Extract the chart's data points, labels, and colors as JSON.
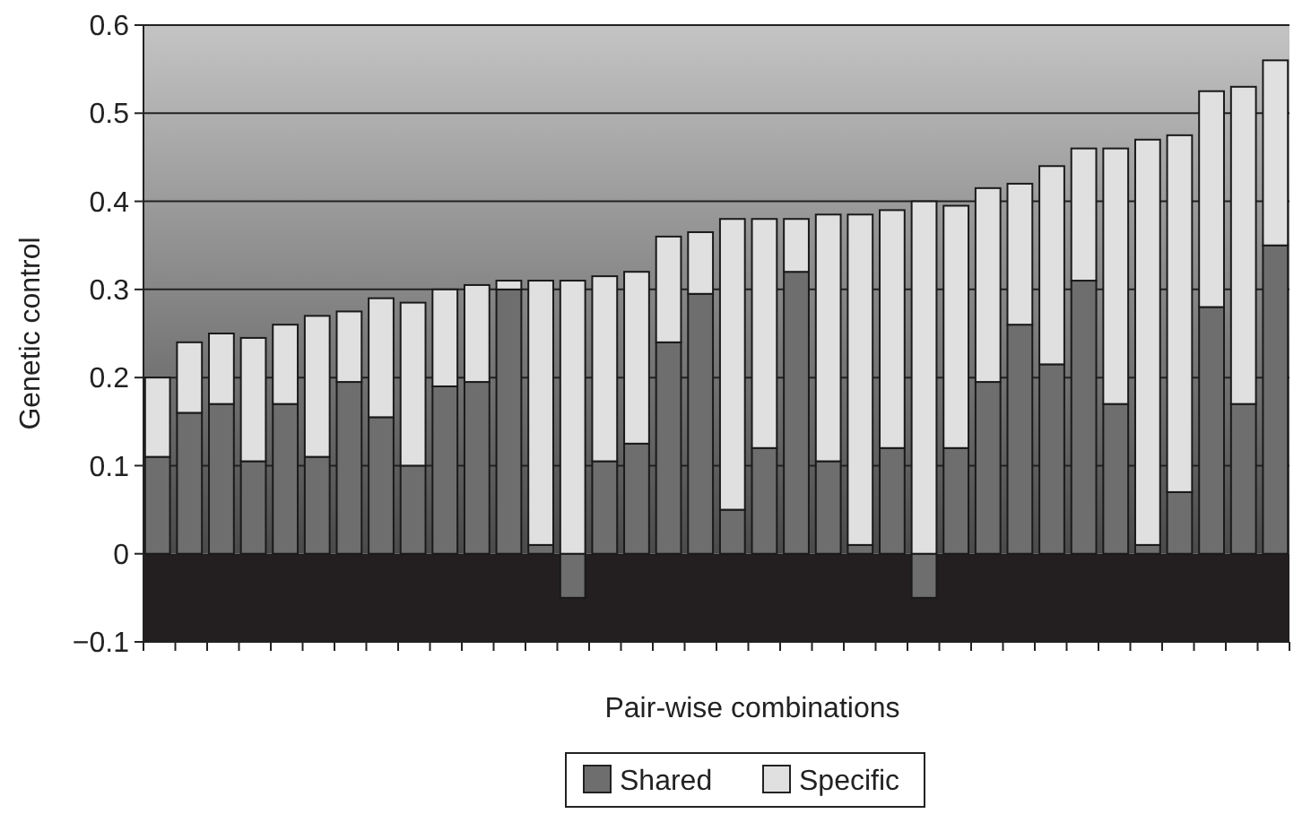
{
  "chart_data": {
    "type": "bar",
    "stacked": true,
    "xlabel": "Pair-wise combinations",
    "ylabel": "Genetic control",
    "categories": [
      null,
      null,
      null,
      null,
      null,
      null,
      null,
      null,
      null,
      null,
      null,
      null,
      null,
      null,
      null,
      null,
      null,
      null,
      null,
      null,
      null,
      null,
      null,
      null,
      null,
      null,
      null,
      null,
      null,
      null,
      null,
      null,
      null,
      null,
      null,
      null
    ],
    "series": [
      {
        "name": "Shared",
        "color": "#6e6e6e",
        "values": [
          0.11,
          0.16,
          0.17,
          0.105,
          0.17,
          0.11,
          0.195,
          0.155,
          0.1,
          0.19,
          0.195,
          0.3,
          0.01,
          -0.05,
          0.105,
          0.125,
          0.24,
          0.295,
          0.05,
          0.12,
          0.32,
          0.105,
          0.01,
          0.12,
          -0.05,
          0.12,
          0.195,
          0.26,
          0.215,
          0.31,
          0.17,
          0.01,
          0.07,
          0.28,
          0.17,
          0.35
        ]
      },
      {
        "name": "Specific",
        "color": "#e0e0e0",
        "values": [
          0.09,
          0.08,
          0.08,
          0.14,
          0.09,
          0.16,
          0.08,
          0.135,
          0.185,
          0.11,
          0.11,
          0.01,
          0.3,
          0.31,
          0.21,
          0.195,
          0.12,
          0.07,
          0.33,
          0.26,
          0.06,
          0.28,
          0.375,
          0.27,
          0.4,
          0.275,
          0.22,
          0.16,
          0.225,
          0.15,
          0.29,
          0.46,
          0.405,
          0.245,
          0.36,
          0.21
        ]
      }
    ],
    "ylim": [
      -0.1,
      0.6
    ],
    "yticks": [
      {
        "value": -0.1,
        "label": "−0.1"
      },
      0,
      0.1,
      0.2,
      0.3,
      0.4,
      0.5,
      0.6
    ],
    "grid": "y",
    "legend": "bottom"
  }
}
